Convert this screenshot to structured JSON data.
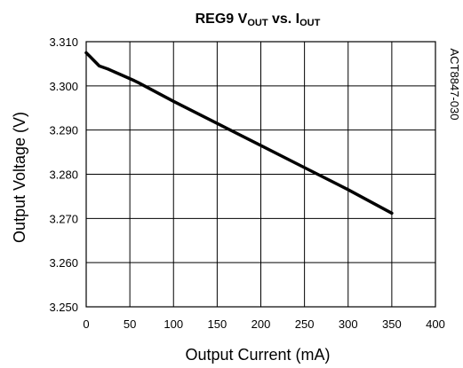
{
  "chart_data": {
    "type": "line",
    "title": {
      "main": "REG9 V",
      "sub1": "OUT",
      "mid": " vs. I",
      "sub2": "OUT"
    },
    "xlabel": "Output Current (mA)",
    "ylabel": "Output Voltage (V)",
    "side_label": "ACT8847-030",
    "xlim": [
      0,
      400
    ],
    "ylim": [
      3.25,
      3.31
    ],
    "x_ticks": [
      0,
      50,
      100,
      150,
      200,
      250,
      300,
      350,
      400
    ],
    "y_ticks": [
      "3.250",
      "3.260",
      "3.270",
      "3.280",
      "3.290",
      "3.300",
      "3.310"
    ],
    "grid": true,
    "legend": "none",
    "series": [
      {
        "x": [
          0,
          5,
          10,
          15,
          25,
          40,
          55,
          60,
          100,
          150,
          200,
          250,
          300,
          350
        ],
        "y": [
          3.3075,
          3.3065,
          3.3055,
          3.3045,
          3.3038,
          3.3025,
          3.3012,
          3.3007,
          3.2965,
          3.2915,
          3.2865,
          3.2815,
          3.2765,
          3.2712
        ],
        "color": "#000000"
      }
    ]
  }
}
